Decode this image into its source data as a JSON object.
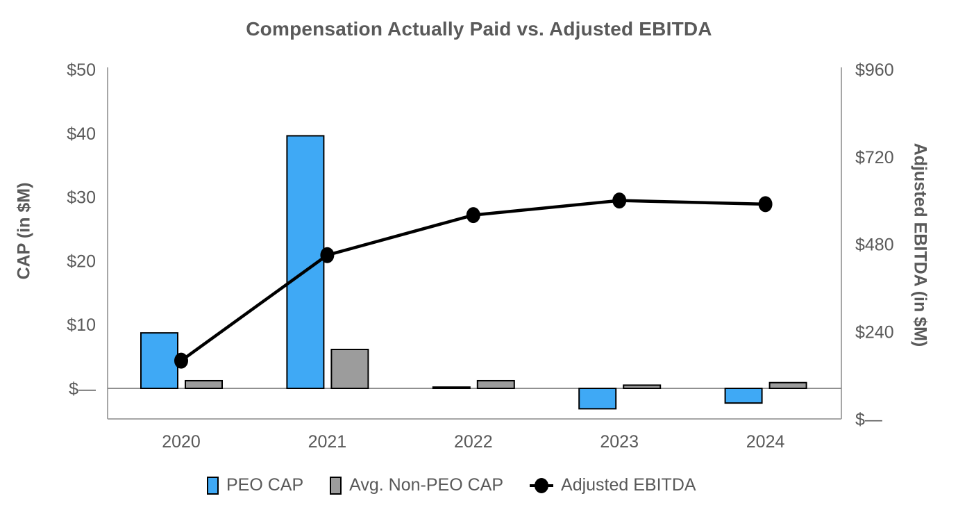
{
  "title": "Compensation Actually Paid vs. Adjusted EBITDA",
  "chart_data": {
    "type": "bar",
    "subtype": "combo-bar-line-dual-axis",
    "categories": [
      "2020",
      "2021",
      "2022",
      "2023",
      "2024"
    ],
    "series": [
      {
        "name": "PEO CAP",
        "type": "bar",
        "axis": "left",
        "color": "#3FA9F5",
        "values": [
          8.7,
          39.6,
          0.2,
          -3.2,
          -2.3
        ]
      },
      {
        "name": "Avg. Non-PEO CAP",
        "type": "bar",
        "axis": "left",
        "color": "#9C9C9C",
        "values": [
          1.2,
          6.1,
          1.2,
          0.5,
          0.9
        ]
      },
      {
        "name": "Adjusted EBITDA",
        "type": "line",
        "axis": "right",
        "color": "#000000",
        "values": [
          160,
          450,
          560,
          600,
          590
        ]
      }
    ],
    "left_axis": {
      "label": "CAP (in $M)",
      "tick_labels": [
        "$50",
        "$40",
        "$30",
        "$20",
        "$10",
        "$—"
      ],
      "tick_values": [
        50,
        40,
        30,
        20,
        10,
        0
      ],
      "range": [
        -5,
        50
      ]
    },
    "right_axis": {
      "label": "Adjusted EBITDA (in $M)",
      "tick_labels": [
        "$960",
        "$720",
        "$480",
        "$240",
        "$—"
      ],
      "tick_values": [
        960,
        720,
        480,
        240,
        0
      ],
      "range": [
        0,
        960
      ]
    },
    "x_axis": {
      "tick_labels": [
        "2020",
        "2021",
        "2022",
        "2023",
        "2024"
      ]
    },
    "legend_position": "bottom",
    "grid": false,
    "colors": {
      "text": "#595959",
      "axis_line": "#A6A6A6",
      "zero_line": "#808080",
      "bar_border": "#000000",
      "peo_bar": "#3FA9F5",
      "non_peo_bar": "#9C9C9C",
      "ebitda_line": "#000000"
    }
  }
}
